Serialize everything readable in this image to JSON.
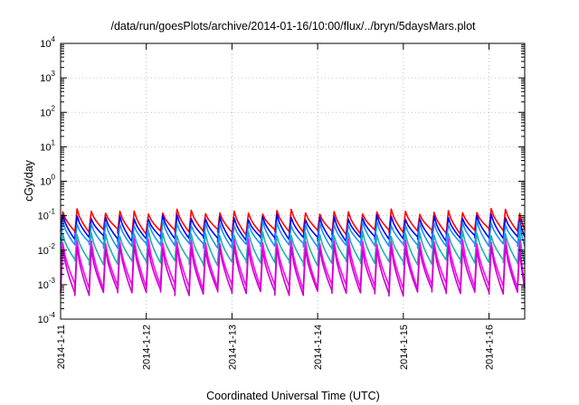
{
  "chart_data": {
    "type": "line",
    "title": "/data/run/goesPlots/archive/2014-01-16/10:00/flux/../bryn/5daysMars.plot",
    "xlabel": "Coordinated Universal Time (UTC)",
    "ylabel": "cGy/day",
    "y_scale": "log",
    "ylim": [
      0.0001,
      10000
    ],
    "xlim": [
      "2014-1-11",
      "2014-1-16 10:00"
    ],
    "x_ticks": [
      "2014-1-11",
      "2014-1-12",
      "2014-1-13",
      "2014-1-14",
      "2014-1-15",
      "2014-1-16"
    ],
    "y_ticks": [
      {
        "base": "10",
        "exp": "-4"
      },
      {
        "base": "10",
        "exp": "-3"
      },
      {
        "base": "10",
        "exp": "-2"
      },
      {
        "base": "10",
        "exp": "-1"
      },
      {
        "base": "10",
        "exp": "0"
      },
      {
        "base": "10",
        "exp": "1"
      },
      {
        "base": "10",
        "exp": "2"
      },
      {
        "base": "10",
        "exp": "3"
      },
      {
        "base": "10",
        "exp": "4"
      }
    ],
    "grid": true,
    "legend": "none",
    "sawtooth_cycles_per_day": 6,
    "series": [
      {
        "color": "#ff0000",
        "peak": 0.13,
        "trough": 0.035
      },
      {
        "color": "#0000ff",
        "peak": 0.09,
        "trough": 0.022
      },
      {
        "color": "#1e90ff",
        "peak": 0.06,
        "trough": 0.014
      },
      {
        "color": "#20b2aa",
        "peak": 0.03,
        "trough": 0.0045
      },
      {
        "color": "#ff00ff",
        "peak": 0.018,
        "trough": 0.0009
      },
      {
        "color": "#cc00cc",
        "peak": 0.012,
        "trough": 0.0006
      }
    ]
  }
}
